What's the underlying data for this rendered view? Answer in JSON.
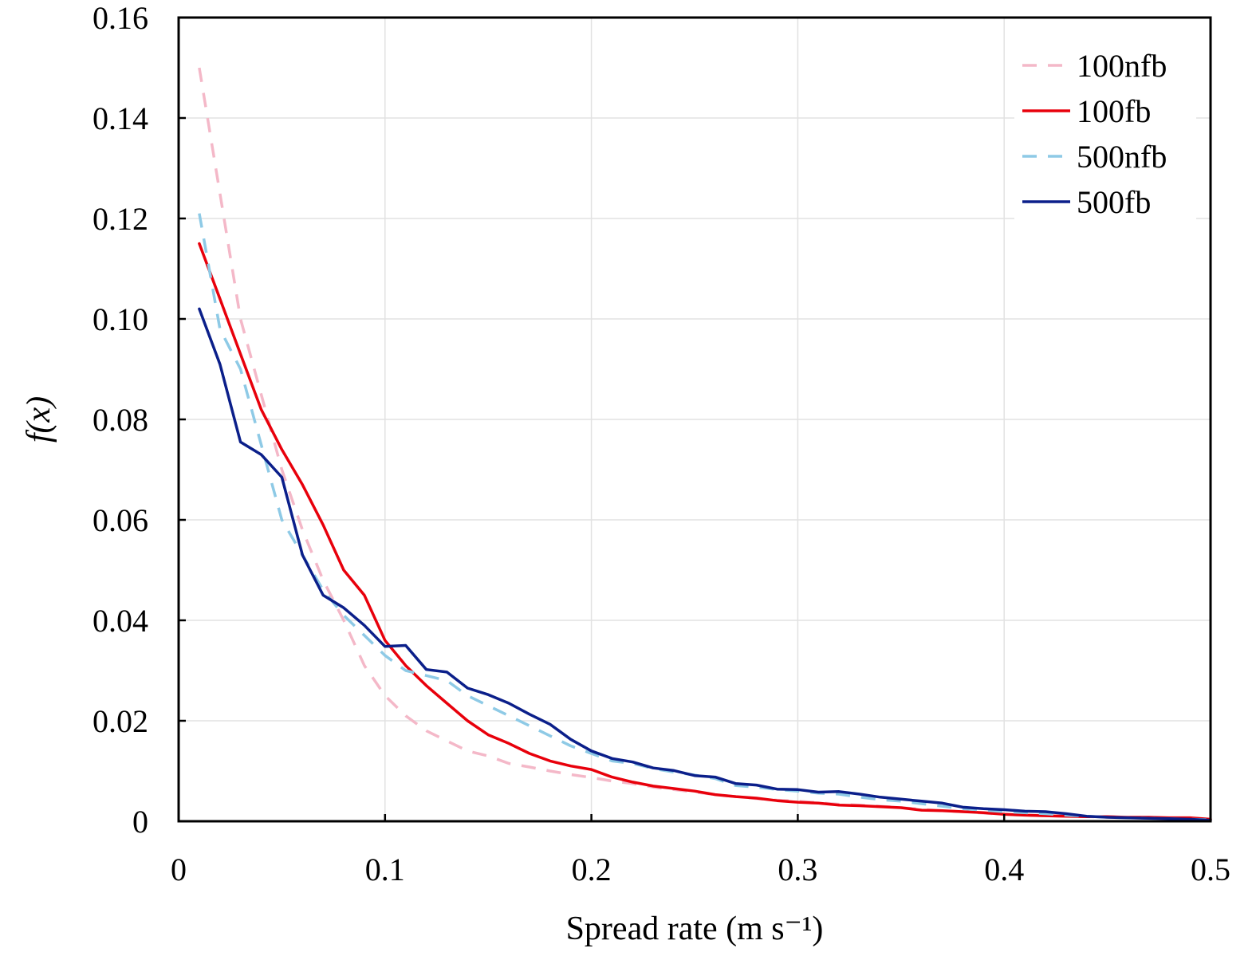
{
  "chart_data": {
    "type": "line",
    "title": "",
    "xlabel": "Spread rate (m s⁻¹)",
    "ylabel": "f(x)",
    "xlim": [
      0,
      0.5
    ],
    "ylim": [
      0,
      0.16
    ],
    "x_ticks": [
      0,
      0.1,
      0.2,
      0.3,
      0.4,
      0.5
    ],
    "x_tick_labels": [
      "0",
      "0.1",
      "0.2",
      "0.3",
      "0.4",
      "0.5"
    ],
    "y_ticks": [
      0,
      0.02,
      0.04,
      0.06,
      0.08,
      0.1,
      0.12,
      0.14,
      0.16
    ],
    "y_tick_labels": [
      "0",
      "0.02",
      "0.04",
      "0.06",
      "0.08",
      "0.10",
      "0.12",
      "0.14",
      "0.16"
    ],
    "grid": true,
    "legend_position": "top-right",
    "series": [
      {
        "name": "100nfb",
        "color": "#f4b8c8",
        "style": "dashed",
        "x": [
          0.01,
          0.02,
          0.03,
          0.04,
          0.05,
          0.06,
          0.07,
          0.08,
          0.09,
          0.1,
          0.11,
          0.12,
          0.13,
          0.14,
          0.15,
          0.16,
          0.17,
          0.18,
          0.19,
          0.2,
          0.21,
          0.22,
          0.23,
          0.24,
          0.25,
          0.26,
          0.27,
          0.28,
          0.29,
          0.3,
          0.31,
          0.32,
          0.33,
          0.34,
          0.35,
          0.36,
          0.37,
          0.38,
          0.39,
          0.4,
          0.41,
          0.42,
          0.43,
          0.44,
          0.45,
          0.46,
          0.47,
          0.48,
          0.49,
          0.5
        ],
        "y": [
          0.15,
          0.125,
          0.1,
          0.085,
          0.07,
          0.058,
          0.048,
          0.04,
          0.031,
          0.025,
          0.021,
          0.018,
          0.016,
          0.014,
          0.013,
          0.0115,
          0.0108,
          0.01,
          0.0093,
          0.0087,
          0.008,
          0.0075,
          0.0068,
          0.0063,
          0.0058,
          0.0053,
          0.0049,
          0.0045,
          0.0042,
          0.004,
          0.0037,
          0.0034,
          0.0032,
          0.003,
          0.0027,
          0.0024,
          0.0021,
          0.0019,
          0.0016,
          0.0014,
          0.0012,
          0.0011,
          0.001,
          0.0009,
          0.0008,
          0.0007,
          0.0006,
          0.0005,
          0.0004,
          0.0003
        ]
      },
      {
        "name": "100fb",
        "color": "#e8000b",
        "style": "solid",
        "x": [
          0.01,
          0.02,
          0.03,
          0.04,
          0.05,
          0.06,
          0.07,
          0.08,
          0.09,
          0.1,
          0.11,
          0.12,
          0.13,
          0.14,
          0.15,
          0.16,
          0.17,
          0.18,
          0.19,
          0.2,
          0.21,
          0.22,
          0.23,
          0.24,
          0.25,
          0.26,
          0.27,
          0.28,
          0.29,
          0.3,
          0.31,
          0.32,
          0.33,
          0.34,
          0.35,
          0.36,
          0.37,
          0.38,
          0.39,
          0.4,
          0.41,
          0.42,
          0.43,
          0.44,
          0.45,
          0.46,
          0.47,
          0.48,
          0.49,
          0.5
        ],
        "y": [
          0.115,
          0.104,
          0.093,
          0.082,
          0.074,
          0.067,
          0.059,
          0.05,
          0.045,
          0.036,
          0.031,
          0.027,
          0.0235,
          0.02,
          0.0172,
          0.0155,
          0.0135,
          0.012,
          0.011,
          0.0103,
          0.0088,
          0.0078,
          0.007,
          0.0065,
          0.006,
          0.0053,
          0.0049,
          0.0046,
          0.0041,
          0.0038,
          0.0036,
          0.0032,
          0.0031,
          0.0029,
          0.0027,
          0.0022,
          0.0021,
          0.0019,
          0.0017,
          0.0014,
          0.0012,
          0.0011,
          0.001,
          0.0009,
          0.0009,
          0.0008,
          0.0008,
          0.0007,
          0.0007,
          0.0004
        ]
      },
      {
        "name": "500nfb",
        "color": "#8ecae6",
        "style": "dashed",
        "x": [
          0.01,
          0.02,
          0.03,
          0.04,
          0.05,
          0.06,
          0.07,
          0.08,
          0.09,
          0.1,
          0.11,
          0.12,
          0.13,
          0.14,
          0.15,
          0.16,
          0.17,
          0.18,
          0.19,
          0.2,
          0.21,
          0.22,
          0.23,
          0.24,
          0.25,
          0.26,
          0.27,
          0.28,
          0.29,
          0.3,
          0.31,
          0.32,
          0.33,
          0.34,
          0.35,
          0.36,
          0.37,
          0.38,
          0.39,
          0.4,
          0.41,
          0.42,
          0.43,
          0.44,
          0.45,
          0.46,
          0.47,
          0.48,
          0.49,
          0.5
        ],
        "y": [
          0.121,
          0.098,
          0.09,
          0.075,
          0.06,
          0.053,
          0.046,
          0.041,
          0.037,
          0.033,
          0.03,
          0.029,
          0.028,
          0.025,
          0.023,
          0.021,
          0.019,
          0.017,
          0.015,
          0.0135,
          0.012,
          0.0115,
          0.0105,
          0.0098,
          0.0092,
          0.0085,
          0.0071,
          0.0068,
          0.0063,
          0.006,
          0.0056,
          0.0054,
          0.0048,
          0.0043,
          0.004,
          0.0035,
          0.003,
          0.0025,
          0.0022,
          0.0019,
          0.0017,
          0.0015,
          0.0012,
          0.001,
          0.0008,
          0.0007,
          0.0006,
          0.0005,
          0.0004,
          0.0003
        ]
      },
      {
        "name": "500fb",
        "color": "#0b1f8a",
        "style": "solid",
        "x": [
          0.01,
          0.02,
          0.03,
          0.04,
          0.05,
          0.06,
          0.07,
          0.08,
          0.09,
          0.1,
          0.11,
          0.12,
          0.13,
          0.14,
          0.15,
          0.16,
          0.17,
          0.18,
          0.19,
          0.2,
          0.21,
          0.22,
          0.23,
          0.24,
          0.25,
          0.26,
          0.27,
          0.28,
          0.29,
          0.3,
          0.31,
          0.32,
          0.33,
          0.34,
          0.35,
          0.36,
          0.37,
          0.38,
          0.39,
          0.4,
          0.41,
          0.42,
          0.43,
          0.44,
          0.45,
          0.46,
          0.47,
          0.48,
          0.49,
          0.5
        ],
        "y": [
          0.102,
          0.091,
          0.0755,
          0.073,
          0.0685,
          0.053,
          0.045,
          0.0425,
          0.039,
          0.0348,
          0.035,
          0.0302,
          0.0297,
          0.0265,
          0.0252,
          0.0235,
          0.0213,
          0.0193,
          0.0163,
          0.014,
          0.0125,
          0.0118,
          0.0106,
          0.0101,
          0.0091,
          0.0088,
          0.0075,
          0.0072,
          0.0064,
          0.0063,
          0.0058,
          0.0059,
          0.0054,
          0.0048,
          0.0044,
          0.004,
          0.0036,
          0.0028,
          0.0025,
          0.0023,
          0.002,
          0.0019,
          0.0015,
          0.001,
          0.0008,
          0.0007,
          0.0006,
          0.0005,
          0.0004,
          0.0002
        ]
      }
    ]
  }
}
